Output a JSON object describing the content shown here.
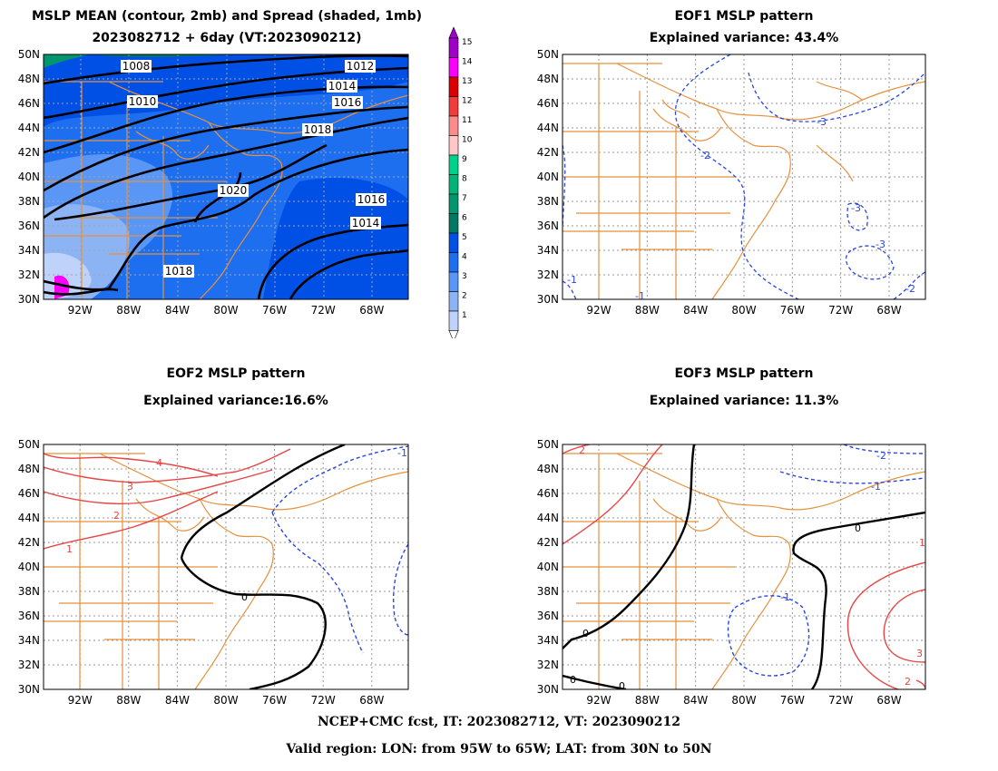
{
  "panels": {
    "mean": {
      "title_line1": "MSLP MEAN (contour, 2mb) and Spread (shaded, 1mb)",
      "title_line2": "2023082712 + 6day (VT:2023090212)",
      "contour_labels": [
        "1008",
        "1010",
        "1012",
        "1014",
        "1016",
        "1018",
        "1020",
        "1016",
        "1014",
        "1018"
      ]
    },
    "eof1": {
      "title_line1": "EOF1 MSLP pattern",
      "title_line2": "Explained variance: 43.4%",
      "contour_labels": [
        "-3",
        "-2",
        "-3",
        "-3",
        "-1",
        "-2",
        "-1"
      ]
    },
    "eof2": {
      "title_line1": "EOF2 MSLP pattern",
      "title_line2": "Explained variance:16.6%",
      "contour_labels": [
        "-1",
        "4",
        "3",
        "2",
        "1",
        "0"
      ]
    },
    "eof3": {
      "title_line1": "EOF3 MSLP pattern",
      "title_line2": "Explained variance: 11.3%",
      "contour_labels": [
        "2",
        "-2",
        "-1",
        "0",
        "1",
        "-1",
        "0",
        "0",
        "0",
        "3",
        "2"
      ]
    }
  },
  "axes": {
    "lat_labels": [
      "50N",
      "48N",
      "46N",
      "44N",
      "42N",
      "40N",
      "38N",
      "36N",
      "34N",
      "32N",
      "30N"
    ],
    "lon_labels": [
      "92W",
      "88W",
      "84W",
      "80W",
      "76W",
      "72W",
      "68W"
    ]
  },
  "colorbar": {
    "labels": [
      "15",
      "14",
      "13",
      "12",
      "11",
      "10",
      "9",
      "8",
      "7",
      "6",
      "5",
      "4",
      "3",
      "2",
      "1"
    ],
    "colors": [
      "#a000c8",
      "#fa00fa",
      "#dc0000",
      "#f03c3c",
      "#fa8c8c",
      "#ffc8c8",
      "#00d28c",
      "#00b478",
      "#00966e",
      "#007864",
      "#0050e6",
      "#1e6ef0",
      "#5a96f5",
      "#8cb4f5",
      "#bed2fa"
    ]
  },
  "colors": {
    "coast": "#e6913c",
    "positive": "#e64646",
    "negative": "#2846e6",
    "zero": "#000000",
    "mean_contour": "#000000"
  },
  "footer": {
    "line1": "NCEP+CMC fcst, IT: 2023082712, VT: 2023090212",
    "line2": "Valid region: LON: from 95W to 65W; LAT: from 30N to 50N"
  }
}
